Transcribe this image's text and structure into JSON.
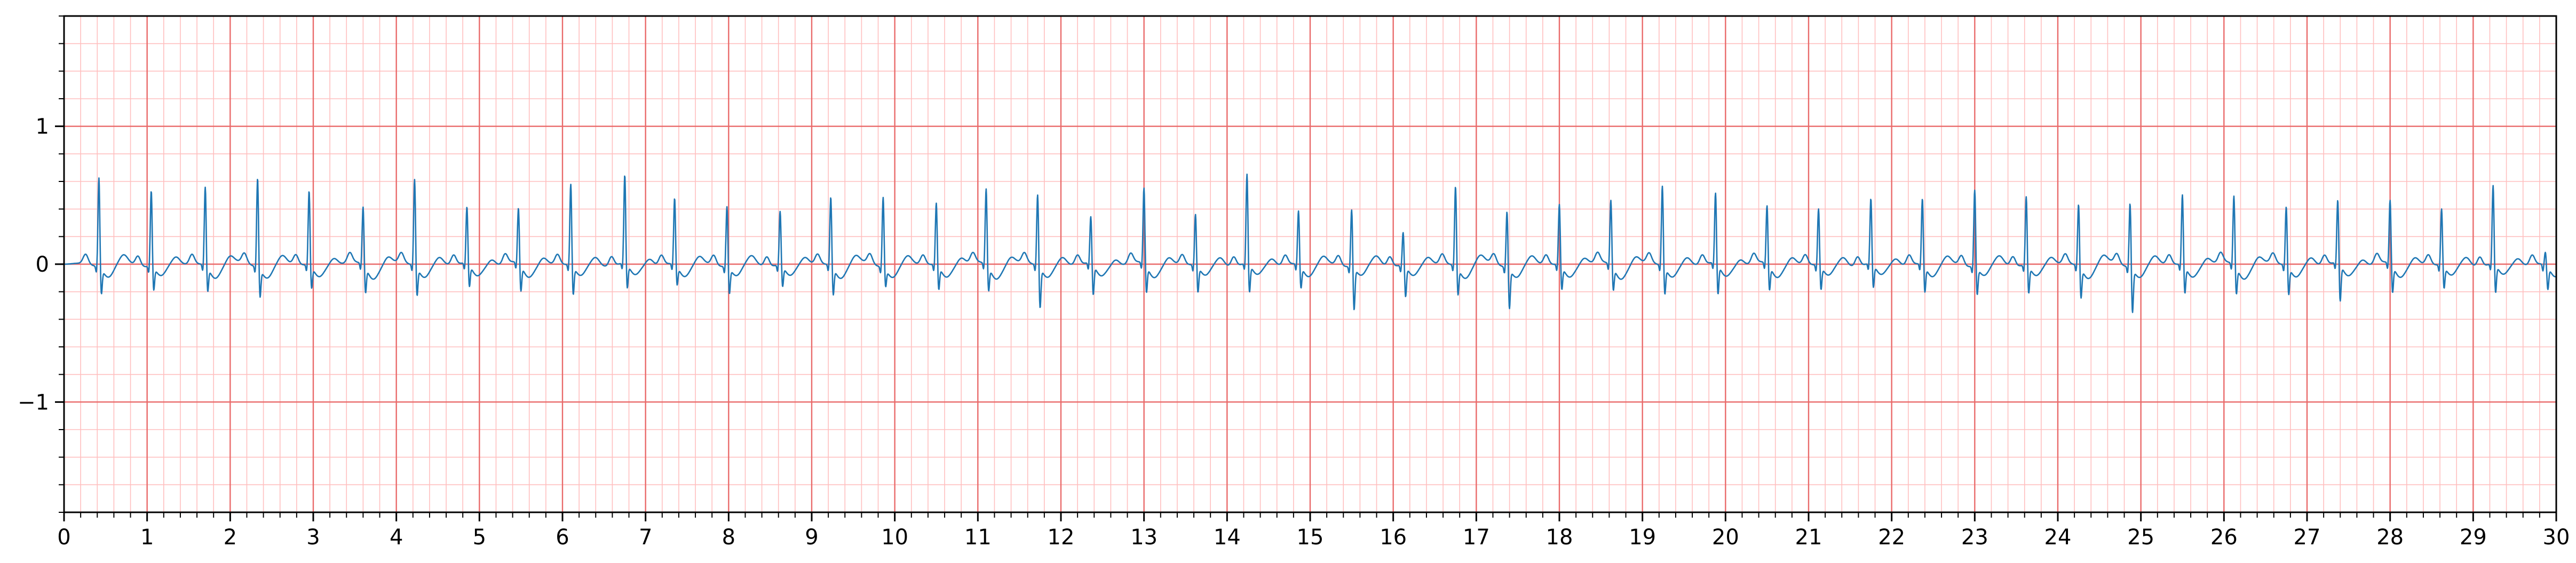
{
  "chart_data": {
    "type": "line",
    "title": "",
    "xlabel": "",
    "ylabel": "",
    "xlim": [
      0,
      30
    ],
    "ylim": [
      -1.8,
      1.8
    ],
    "x_major_step": 1,
    "x_minor_step": 0.2,
    "y_major_step": 1,
    "y_minor_step": 0.2,
    "grid": true,
    "xticks": [
      "0",
      "1",
      "2",
      "3",
      "4",
      "5",
      "6",
      "7",
      "8",
      "9",
      "10",
      "11",
      "12",
      "13",
      "14",
      "15",
      "16",
      "17",
      "18",
      "19",
      "20",
      "21",
      "22",
      "23",
      "24",
      "25",
      "26",
      "27",
      "28",
      "29",
      "30"
    ],
    "yticks": [
      {
        "value": 1,
        "label": "1"
      },
      {
        "value": 0,
        "label": "0"
      },
      {
        "value": -1,
        "label": "−1"
      }
    ],
    "colors": {
      "trace": "#1f77b4",
      "grid_major": "#e96a6a",
      "grid_minor": "#ffbfbf"
    },
    "series": [
      {
        "beat_times_s": [
          0.42,
          1.05,
          1.7,
          2.33,
          2.95,
          3.6,
          4.22,
          4.85,
          5.47,
          6.1,
          6.75,
          7.35,
          7.98,
          8.62,
          9.23,
          9.86,
          10.5,
          11.1,
          11.72,
          12.36,
          13.0,
          13.62,
          14.24,
          14.86,
          15.5,
          16.12,
          16.75,
          17.37,
          18.0,
          18.62,
          19.24,
          19.88,
          20.5,
          21.12,
          21.75,
          22.37,
          23.0,
          23.62,
          24.25,
          24.87,
          25.5,
          26.12,
          26.75,
          27.37,
          28.0,
          28.62,
          29.24,
          29.87
        ],
        "r_peak_mV": [
          0.66,
          0.56,
          0.58,
          0.66,
          0.55,
          0.43,
          0.64,
          0.42,
          0.41,
          0.6,
          0.65,
          0.49,
          0.45,
          0.4,
          0.51,
          0.52,
          0.46,
          0.56,
          0.53,
          0.35,
          0.56,
          0.38,
          0.66,
          0.4,
          0.43,
          0.25,
          0.59,
          0.42,
          0.45,
          0.48,
          0.59,
          0.52,
          0.43,
          0.42,
          0.48,
          0.49,
          0.57,
          0.51,
          0.46,
          0.48,
          0.52,
          0.51,
          0.44,
          0.47,
          0.47,
          0.42,
          0.58,
          0.1
        ],
        "s_trough_mV": [
          -0.19,
          -0.17,
          -0.18,
          -0.21,
          -0.16,
          -0.19,
          -0.21,
          -0.16,
          -0.19,
          -0.21,
          -0.18,
          -0.14,
          -0.19,
          -0.15,
          -0.2,
          -0.13,
          -0.17,
          -0.18,
          -0.3,
          -0.22,
          -0.2,
          -0.19,
          -0.21,
          -0.16,
          -0.31,
          -0.22,
          -0.2,
          -0.29,
          -0.17,
          -0.17,
          -0.2,
          -0.22,
          -0.18,
          -0.17,
          -0.17,
          -0.19,
          -0.2,
          -0.2,
          -0.22,
          -0.32,
          -0.2,
          -0.2,
          -0.2,
          -0.27,
          -0.2,
          -0.16,
          -0.21,
          -0.16
        ]
      }
    ]
  }
}
